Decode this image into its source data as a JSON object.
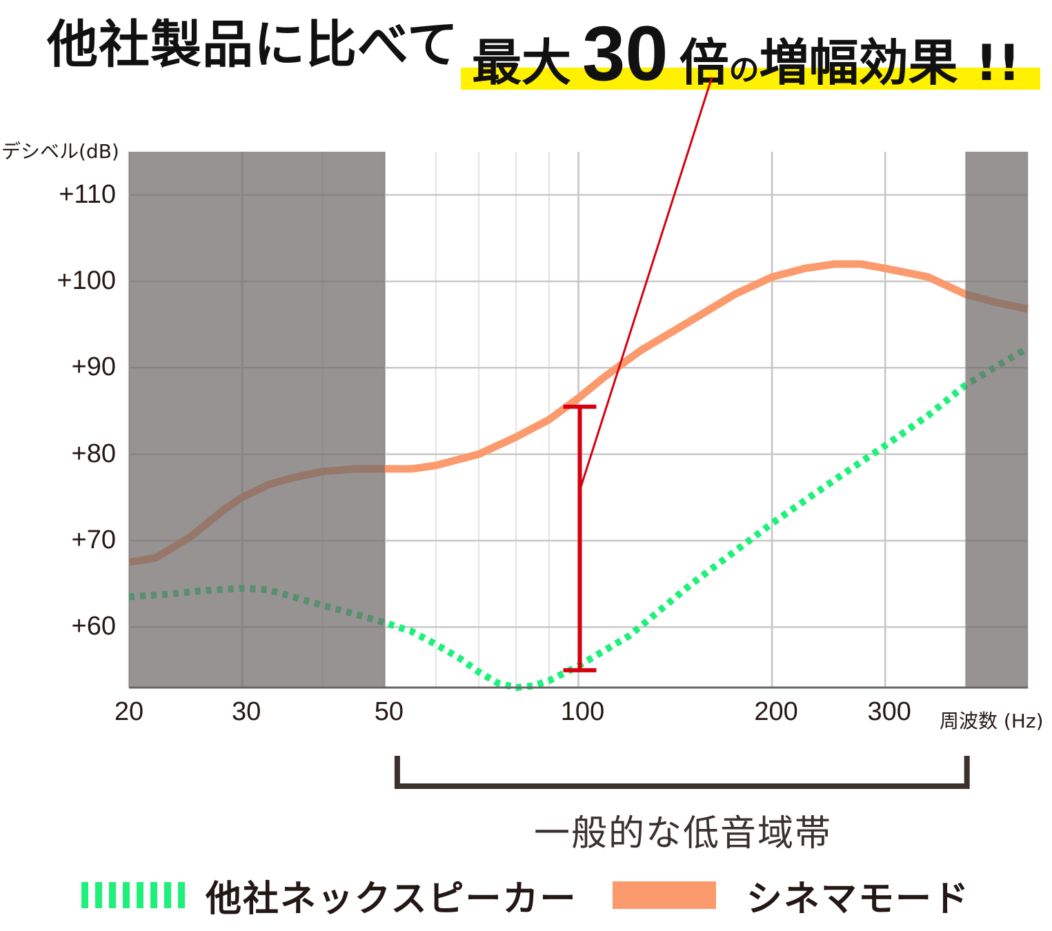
{
  "headline": {
    "left": "他社製品に比べて",
    "right_prefix": "最大",
    "right_number": "30",
    "right_unit": "倍",
    "right_particle": "の",
    "right_suffix": "増幅効果 !!"
  },
  "colors": {
    "highlight": "#fff100",
    "cinema_line": "#fb9a6d",
    "others_line": "#1ef07a",
    "shade": "#6f6969",
    "emphasis": "#d7000f"
  },
  "chart_data": {
    "type": "line",
    "ylabel": "デシベル(dB)",
    "xlabel": "周波数 (Hz)",
    "x_scale": "log",
    "xlim": [
      20,
      500
    ],
    "ylim": [
      53,
      115
    ],
    "x_ticks": [
      {
        "value": 20,
        "label": "20"
      },
      {
        "value": 30,
        "label": "30"
      },
      {
        "value": 50,
        "label": "50"
      },
      {
        "value": 100,
        "label": "100"
      },
      {
        "value": 200,
        "label": "200"
      },
      {
        "value": 300,
        "label": "300"
      }
    ],
    "y_ticks": [
      {
        "value": 60,
        "label": "+60"
      },
      {
        "value": 70,
        "label": "+70"
      },
      {
        "value": 80,
        "label": "+80"
      },
      {
        "value": 90,
        "label": "+90"
      },
      {
        "value": 100,
        "label": "+100"
      },
      {
        "value": 110,
        "label": "+110"
      }
    ],
    "grid": true,
    "shaded_ranges": [
      [
        20,
        50
      ],
      [
        400,
        500
      ]
    ],
    "series": [
      {
        "name": "シネマモード",
        "style": "solid",
        "x": [
          20,
          22,
          25,
          28,
          30,
          33,
          36,
          40,
          45,
          50,
          55,
          60,
          70,
          80,
          90,
          100,
          110,
          125,
          150,
          175,
          200,
          225,
          250,
          275,
          300,
          350,
          400,
          450,
          500
        ],
        "y": [
          67.5,
          68,
          70.5,
          73.5,
          75,
          76.5,
          77.3,
          78,
          78.3,
          78.3,
          78.3,
          78.7,
          80,
          82,
          84,
          86.5,
          89,
          92,
          95.5,
          98.5,
          100.5,
          101.5,
          102,
          102,
          101.5,
          100.5,
          98.5,
          97.5,
          96.8
        ]
      },
      {
        "name": "他社ネックスピーカー",
        "style": "dotted",
        "x": [
          20,
          23,
          26,
          30,
          33,
          36,
          40,
          45,
          50,
          55,
          60,
          65,
          70,
          75,
          80,
          85,
          90,
          100,
          120,
          150,
          200,
          250,
          300,
          350,
          400,
          450,
          500
        ],
        "y": [
          63.5,
          63.8,
          64.2,
          64.5,
          64.3,
          63.5,
          62.5,
          61.5,
          60.5,
          59.5,
          58,
          56.5,
          54.8,
          53.5,
          53,
          53.2,
          53.8,
          55.5,
          59,
          65,
          72,
          77,
          81,
          84.5,
          88,
          90.3,
          92.3
        ]
      }
    ],
    "annotations": [
      {
        "type": "range_bar",
        "x": 100,
        "y_from": 55,
        "y_to": 85.5
      },
      {
        "type": "range",
        "from": 50,
        "to": 400,
        "label": "一般的な低音域帯"
      }
    ]
  },
  "legend": [
    {
      "label": "他社ネックスピーカー"
    },
    {
      "label": "シネマモード"
    }
  ]
}
